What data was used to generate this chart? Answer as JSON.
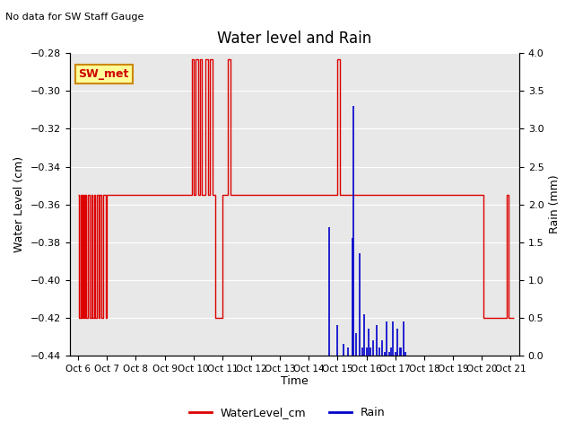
{
  "title": "Water level and Rain",
  "subtitle": "No data for SW Staff Gauge",
  "xlabel": "Time",
  "ylabel_left": "Water Level (cm)",
  "ylabel_right": "Rain (mm)",
  "ylim_left": [
    -0.44,
    -0.28
  ],
  "ylim_right": [
    0.0,
    4.0
  ],
  "yticks_left": [
    -0.44,
    -0.42,
    -0.4,
    -0.38,
    -0.36,
    -0.34,
    -0.32,
    -0.3,
    -0.28
  ],
  "yticks_right": [
    0.0,
    0.5,
    1.0,
    1.5,
    2.0,
    2.5,
    3.0,
    3.5,
    4.0
  ],
  "xtick_labels": [
    "Oct 6",
    "Oct 7",
    "Oct 8",
    "Oct 9",
    "Oct 10",
    "Oct 11",
    "Oct 12",
    "Oct 13",
    "Oct 14",
    "Oct 15",
    "Oct 16",
    "Oct 17",
    "Oct 18",
    "Oct 19",
    "Oct 20",
    "Oct 21"
  ],
  "xtick_positions": [
    0,
    1,
    2,
    3,
    4,
    5,
    6,
    7,
    8,
    9,
    10,
    11,
    12,
    13,
    14,
    15
  ],
  "xlim": [
    -0.3,
    15.3
  ],
  "water_color": "#dd0000",
  "rain_color": "#0000cc",
  "background_color": "#e8e8e8",
  "plot_bg": "#e8e8e8",
  "box_label": "SW_met",
  "box_facecolor": "#ffff99",
  "box_edgecolor": "#cc8800",
  "box_textcolor": "#cc0000",
  "legend_water": "WaterLevel_cm",
  "legend_rain": "Rain",
  "water_level_x": [
    0.0,
    0.04,
    0.04,
    0.08,
    0.08,
    0.1,
    0.1,
    0.13,
    0.13,
    0.15,
    0.15,
    0.18,
    0.18,
    0.2,
    0.2,
    0.23,
    0.23,
    0.27,
    0.27,
    0.33,
    0.33,
    0.4,
    0.4,
    0.45,
    0.45,
    0.5,
    0.5,
    0.55,
    0.55,
    0.6,
    0.6,
    0.65,
    0.65,
    0.7,
    0.7,
    0.75,
    0.75,
    0.8,
    0.8,
    0.88,
    0.88,
    0.95,
    0.95,
    1.0,
    1.0,
    1.05,
    1.05,
    1.5,
    1.5,
    2.5,
    2.5,
    3.0,
    3.0,
    3.95,
    3.95,
    4.02,
    4.02,
    4.08,
    4.08,
    4.15,
    4.15,
    4.22,
    4.22,
    4.3,
    4.3,
    4.4,
    4.4,
    4.5,
    4.5,
    4.58,
    4.58,
    4.65,
    4.65,
    4.75,
    4.75,
    5.0,
    5.0,
    5.2,
    5.2,
    5.28,
    5.28,
    5.35,
    5.35,
    6.0,
    6.0,
    7.0,
    7.0,
    9.0,
    9.0,
    9.08,
    9.08,
    9.15,
    9.15,
    14.0,
    14.0,
    14.05,
    14.05,
    14.88,
    14.88,
    14.93,
    14.93,
    15.05,
    15.05,
    15.1
  ],
  "water_level_y": [
    -0.355,
    -0.355,
    -0.42,
    -0.42,
    -0.355,
    -0.355,
    -0.42,
    -0.42,
    -0.355,
    -0.355,
    -0.42,
    -0.42,
    -0.355,
    -0.355,
    -0.42,
    -0.42,
    -0.355,
    -0.355,
    -0.42,
    -0.42,
    -0.355,
    -0.355,
    -0.42,
    -0.42,
    -0.355,
    -0.355,
    -0.42,
    -0.42,
    -0.355,
    -0.355,
    -0.42,
    -0.42,
    -0.355,
    -0.355,
    -0.42,
    -0.42,
    -0.355,
    -0.355,
    -0.42,
    -0.42,
    -0.355,
    -0.355,
    -0.42,
    -0.42,
    -0.355,
    -0.355,
    -0.355,
    -0.355,
    -0.355,
    -0.355,
    -0.355,
    -0.355,
    -0.355,
    -0.355,
    -0.283,
    -0.283,
    -0.355,
    -0.355,
    -0.283,
    -0.283,
    -0.355,
    -0.355,
    -0.283,
    -0.283,
    -0.355,
    -0.355,
    -0.283,
    -0.283,
    -0.355,
    -0.355,
    -0.283,
    -0.283,
    -0.355,
    -0.355,
    -0.42,
    -0.42,
    -0.355,
    -0.355,
    -0.283,
    -0.283,
    -0.355,
    -0.355,
    -0.355,
    -0.355,
    -0.355,
    -0.355,
    -0.355,
    -0.355,
    -0.283,
    -0.283,
    -0.355,
    -0.355,
    -0.355,
    -0.355,
    -0.355,
    -0.355,
    -0.42,
    -0.42,
    -0.355,
    -0.355,
    -0.42,
    -0.42,
    -0.42,
    -0.42
  ],
  "rain_spikes": [
    [
      8.7,
      1.7
    ],
    [
      9.0,
      0.4
    ],
    [
      9.2,
      0.15
    ],
    [
      9.35,
      0.1
    ],
    [
      9.5,
      1.55
    ],
    [
      9.55,
      3.3
    ],
    [
      9.65,
      0.3
    ],
    [
      9.75,
      1.35
    ],
    [
      9.85,
      0.1
    ],
    [
      9.92,
      0.55
    ],
    [
      10.0,
      0.1
    ],
    [
      10.07,
      0.35
    ],
    [
      10.15,
      0.1
    ],
    [
      10.22,
      0.2
    ],
    [
      10.35,
      0.4
    ],
    [
      10.45,
      0.1
    ],
    [
      10.55,
      0.2
    ],
    [
      10.62,
      0.05
    ],
    [
      10.7,
      0.45
    ],
    [
      10.8,
      0.05
    ],
    [
      10.85,
      0.1
    ],
    [
      10.92,
      0.45
    ],
    [
      11.0,
      0.05
    ],
    [
      11.07,
      0.35
    ],
    [
      11.15,
      0.1
    ],
    [
      11.2,
      0.1
    ],
    [
      11.28,
      0.45
    ],
    [
      11.35,
      0.05
    ]
  ]
}
